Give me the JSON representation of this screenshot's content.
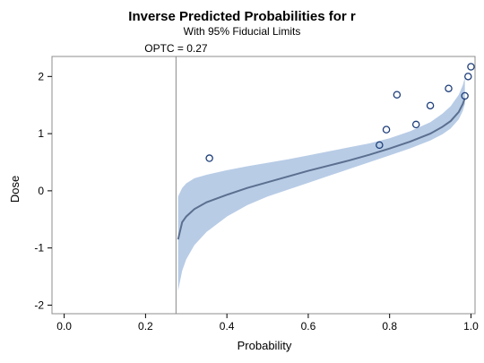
{
  "chart_data": {
    "type": "line",
    "title": "Inverse Predicted Probabilities for r",
    "subtitle": "With 95% Fiducial Limits",
    "xlabel": "Probability",
    "ylabel": "Dose",
    "xlim": [
      -0.03,
      1.01
    ],
    "ylim": [
      -2.15,
      2.35
    ],
    "x_ticks": [
      0.0,
      0.2,
      0.4,
      0.6,
      0.8,
      1.0
    ],
    "x_tick_labels": [
      "0.0",
      "0.2",
      "0.4",
      "0.6",
      "0.8",
      "1.0"
    ],
    "y_ticks": [
      -2,
      -1,
      0,
      1,
      2
    ],
    "y_tick_labels": [
      "-2",
      "-1",
      "0",
      "1",
      "2"
    ],
    "reference_line": {
      "x": 0.275,
      "label": "OPTC = 0.27"
    },
    "series": [
      {
        "role": "predicted",
        "x": [
          0.28,
          0.29,
          0.3,
          0.32,
          0.35,
          0.4,
          0.45,
          0.5,
          0.55,
          0.6,
          0.65,
          0.7,
          0.75,
          0.8,
          0.85,
          0.9,
          0.93,
          0.95,
          0.97,
          0.98,
          0.985
        ],
        "y": [
          -0.85,
          -0.55,
          -0.45,
          -0.32,
          -0.2,
          -0.07,
          0.05,
          0.15,
          0.25,
          0.35,
          0.44,
          0.53,
          0.63,
          0.74,
          0.86,
          1.0,
          1.12,
          1.22,
          1.38,
          1.52,
          1.62
        ]
      },
      {
        "role": "fiducial_band",
        "x": [
          0.28,
          0.29,
          0.3,
          0.32,
          0.35,
          0.4,
          0.45,
          0.5,
          0.55,
          0.6,
          0.65,
          0.7,
          0.75,
          0.8,
          0.85,
          0.9,
          0.93,
          0.95,
          0.97,
          0.98,
          0.985
        ],
        "lower": [
          -1.75,
          -1.4,
          -1.2,
          -0.95,
          -0.72,
          -0.45,
          -0.25,
          -0.1,
          0.02,
          0.14,
          0.26,
          0.38,
          0.5,
          0.62,
          0.74,
          0.88,
          0.99,
          1.09,
          1.25,
          1.4,
          1.52
        ],
        "upper": [
          -0.1,
          0.05,
          0.13,
          0.22,
          0.28,
          0.36,
          0.43,
          0.49,
          0.55,
          0.62,
          0.69,
          0.76,
          0.83,
          0.92,
          1.04,
          1.2,
          1.35,
          1.48,
          1.68,
          1.85,
          1.98
        ]
      }
    ],
    "points": {
      "x": [
        0.357,
        0.775,
        0.792,
        0.818,
        0.865,
        0.9,
        0.945,
        0.985,
        0.993,
        1.0
      ],
      "y": [
        0.57,
        0.8,
        1.07,
        1.68,
        1.16,
        1.49,
        1.79,
        1.66,
        2.0,
        2.17
      ]
    },
    "colors": {
      "band": "#b8cce6",
      "line": "#5b6f8f",
      "marker_stroke": "#1f3f7a",
      "ref_line": "#9a9a9a",
      "frame": "#8c8c8c"
    }
  }
}
